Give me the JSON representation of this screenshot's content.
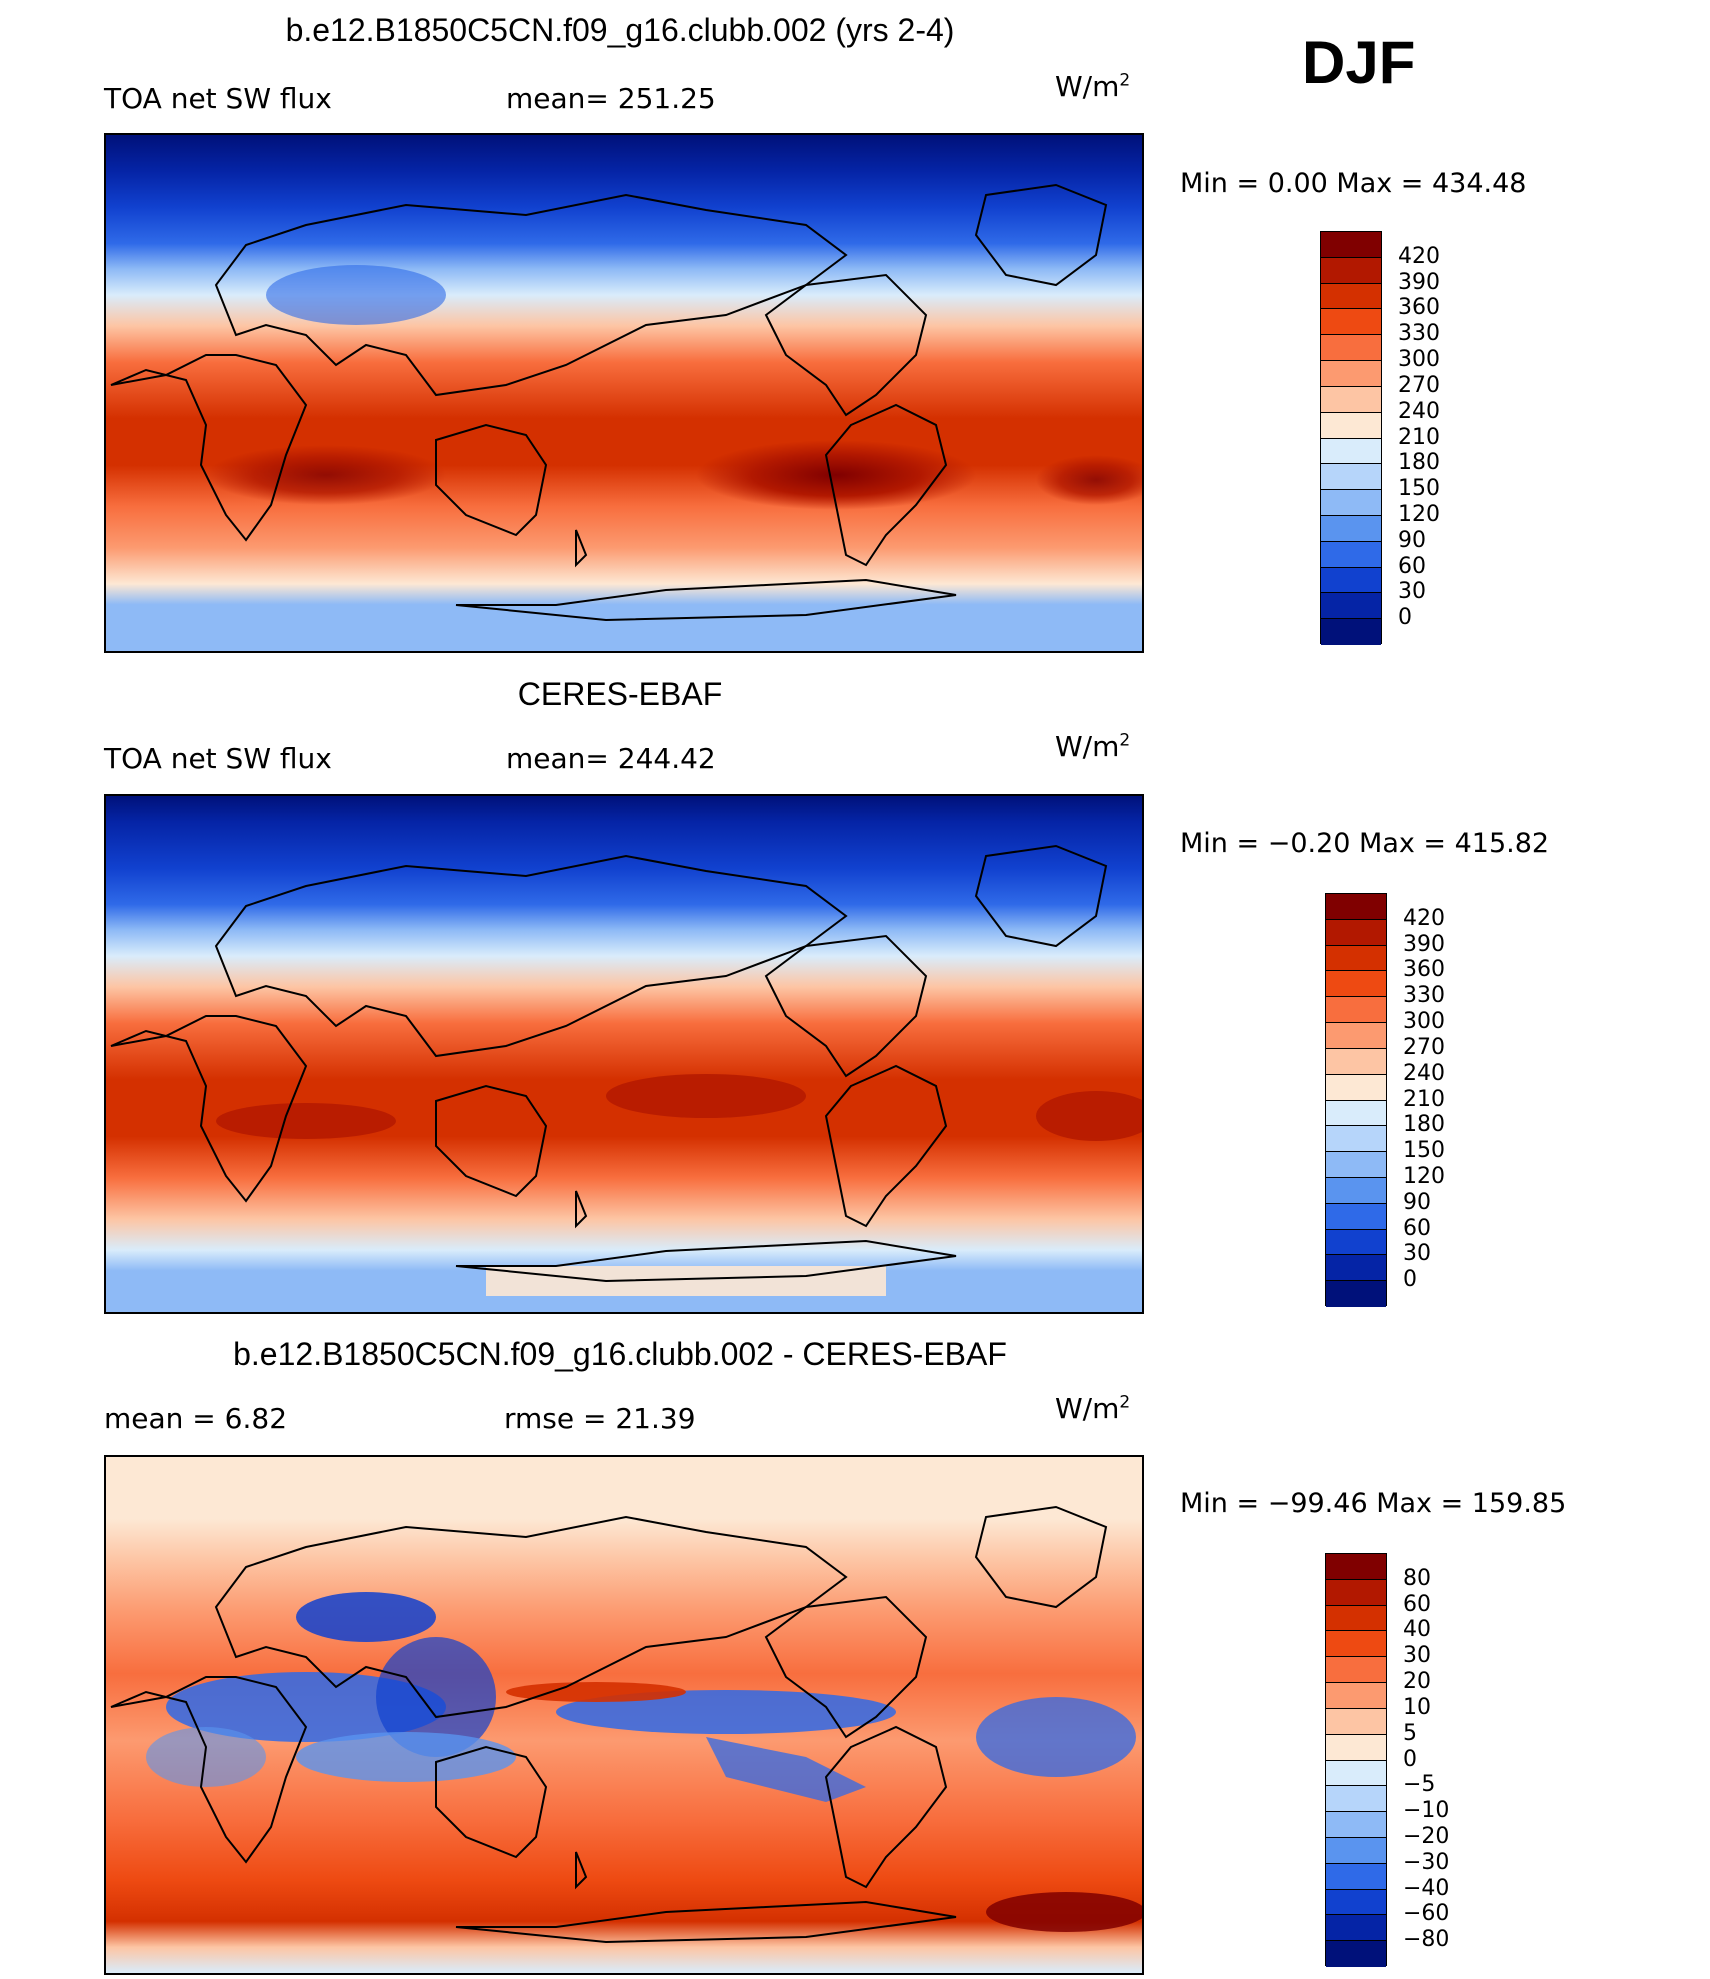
{
  "season": "DJF",
  "panels": [
    {
      "title": "b.e12.B1850C5CN.f09_g16.clubb.002 (yrs 2-4)",
      "left_label": "TOA net SW flux",
      "mean_label": "mean= 251.25",
      "units": "W/m",
      "units_sup": "2",
      "minmax": "Min =    0.00  Max = 434.48",
      "colorbar": {
        "labels": [
          "420",
          "390",
          "360",
          "330",
          "300",
          "270",
          "240",
          "210",
          "180",
          "150",
          "120",
          "90",
          "60",
          "30",
          "0"
        ],
        "colors": [
          "#800000",
          "#b21800",
          "#d43000",
          "#ee4a12",
          "#f86e3e",
          "#fc9a70",
          "#fdc5a4",
          "#fde8d4",
          "#d9ecfb",
          "#b6d5fa",
          "#8ebaf6",
          "#5a94ef",
          "#2f6ae8",
          "#1141cf",
          "#0524a6",
          "#00117a"
        ]
      }
    },
    {
      "title": "CERES-EBAF",
      "left_label": "TOA net SW flux",
      "mean_label": "mean= 244.42",
      "units": "W/m",
      "units_sup": "2",
      "minmax": "Min =  −0.20  Max = 415.82",
      "colorbar": {
        "labels": [
          "420",
          "390",
          "360",
          "330",
          "300",
          "270",
          "240",
          "210",
          "180",
          "150",
          "120",
          "90",
          "60",
          "30",
          "0"
        ],
        "colors": [
          "#800000",
          "#b21800",
          "#d43000",
          "#ee4a12",
          "#f86e3e",
          "#fc9a70",
          "#fdc5a4",
          "#fde8d4",
          "#d9ecfb",
          "#b6d5fa",
          "#8ebaf6",
          "#5a94ef",
          "#2f6ae8",
          "#1141cf",
          "#0524a6",
          "#00117a"
        ]
      }
    },
    {
      "title": "b.e12.B1850C5CN.f09_g16.clubb.002 - CERES-EBAF",
      "left_label": "mean =     6.82",
      "mean_label": "rmse =    21.39",
      "units": "W/m",
      "units_sup": "2",
      "minmax": "Min = −99.46  Max =  159.85",
      "colorbar": {
        "labels": [
          "80",
          "60",
          "40",
          "30",
          "20",
          "10",
          "5",
          "0",
          "−5",
          "−10",
          "−20",
          "−30",
          "−40",
          "−60",
          "−80"
        ],
        "colors": [
          "#800000",
          "#b21800",
          "#d43000",
          "#ee4a12",
          "#f86e3e",
          "#fc9a70",
          "#fdc5a4",
          "#fde8d4",
          "#d9ecfb",
          "#b6d5fa",
          "#8ebaf6",
          "#5a94ef",
          "#2f6ae8",
          "#1141cf",
          "#0524a6",
          "#00117a"
        ]
      }
    }
  ]
}
